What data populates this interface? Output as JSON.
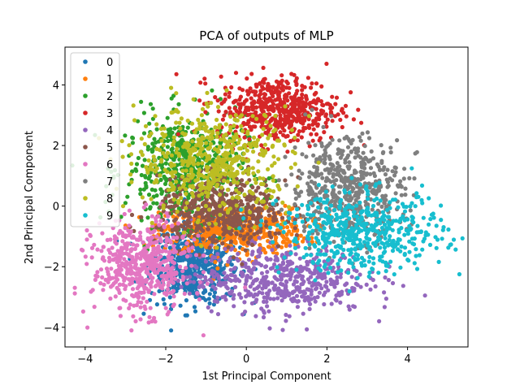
{
  "chart_data": {
    "type": "scatter",
    "title": "PCA of outputs of MLP",
    "xlabel": "1st Principal Component",
    "ylabel": "2nd Principal Component",
    "xlim": [
      -4.5,
      5.5
    ],
    "ylim": [
      -4.65,
      5.25
    ],
    "xticks": [
      -4,
      -2,
      0,
      2,
      4
    ],
    "yticks": [
      -4,
      -2,
      0,
      2,
      4
    ],
    "xtick_labels": [
      "−4",
      "−2",
      "0",
      "2",
      "4"
    ],
    "ytick_labels": [
      "−4",
      "−2",
      "0",
      "2",
      "4"
    ],
    "grid": false,
    "legend_position": "upper-left",
    "series": [
      {
        "name": "0",
        "color": "#1f77b4",
        "cx": -1.3,
        "cy": -1.9,
        "sx": 0.55,
        "sy": 0.65
      },
      {
        "name": "1",
        "color": "#ff7f0e",
        "cx": -0.3,
        "cy": -0.8,
        "sx": 0.9,
        "sy": 0.4
      },
      {
        "name": "2",
        "color": "#2ca02c",
        "cx": -1.5,
        "cy": 1.2,
        "sx": 0.75,
        "sy": 0.9
      },
      {
        "name": "3",
        "color": "#d62728",
        "cx": 0.8,
        "cy": 3.2,
        "sx": 0.75,
        "sy": 0.55
      },
      {
        "name": "4",
        "color": "#9467bd",
        "cx": 0.8,
        "cy": -2.4,
        "sx": 1.1,
        "sy": 0.55
      },
      {
        "name": "5",
        "color": "#8c564b",
        "cx": -0.6,
        "cy": -0.2,
        "sx": 0.8,
        "sy": 0.55
      },
      {
        "name": "6",
        "color": "#e377c2",
        "cx": -2.6,
        "cy": -2.0,
        "sx": 0.6,
        "sy": 0.75
      },
      {
        "name": "7",
        "color": "#7f7f7f",
        "cx": 2.5,
        "cy": 0.6,
        "sx": 0.7,
        "sy": 0.85
      },
      {
        "name": "8",
        "color": "#bcbd22",
        "cx": -0.8,
        "cy": 1.5,
        "sx": 0.95,
        "sy": 0.85
      },
      {
        "name": "9",
        "color": "#17becf",
        "cx": 2.9,
        "cy": -0.9,
        "sx": 1.0,
        "sy": 0.65
      }
    ]
  }
}
